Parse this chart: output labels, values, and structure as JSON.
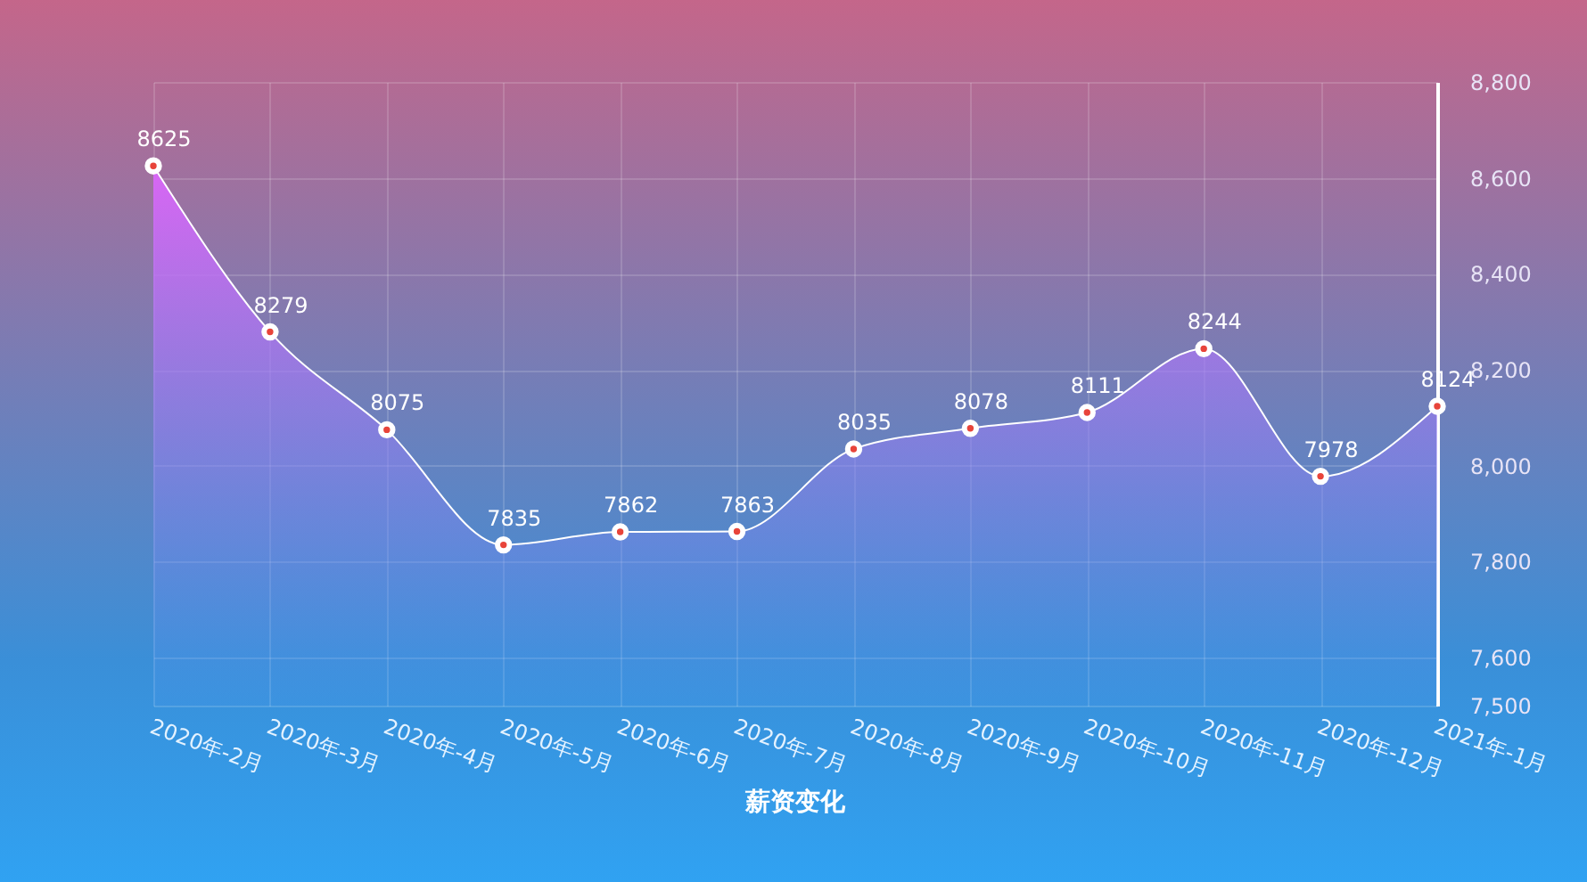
{
  "chart_data": {
    "type": "area",
    "title": "薪资变化",
    "categories": [
      "2020年-2月",
      "2020年-3月",
      "2020年-4月",
      "2020年-5月",
      "2020年-6月",
      "2020年-7月",
      "2020年-8月",
      "2020年-9月",
      "2020年-10月",
      "2020年-11月",
      "2020年-12月",
      "2021年-1月"
    ],
    "series": [
      {
        "color": "#ffffff",
        "values": [
          8625,
          8279,
          8075,
          7835,
          7862,
          7863,
          8035,
          8078,
          8111,
          8244,
          7978,
          8124
        ]
      }
    ],
    "ylim": [
      7500,
      8800
    ],
    "yticks": [
      {
        "value": 7500,
        "label": "7,500"
      },
      {
        "value": 7600,
        "label": "7,600"
      },
      {
        "value": 7800,
        "label": "7,800"
      },
      {
        "value": 8000,
        "label": "8,000"
      },
      {
        "value": 8200,
        "label": "8,200"
      },
      {
        "value": 8400,
        "label": "8,400"
      },
      {
        "value": 8600,
        "label": "8,600"
      },
      {
        "value": 8800,
        "label": "8,800"
      }
    ],
    "grid": true,
    "marker": "circle",
    "data_labels": true,
    "line_style": "solid"
  }
}
